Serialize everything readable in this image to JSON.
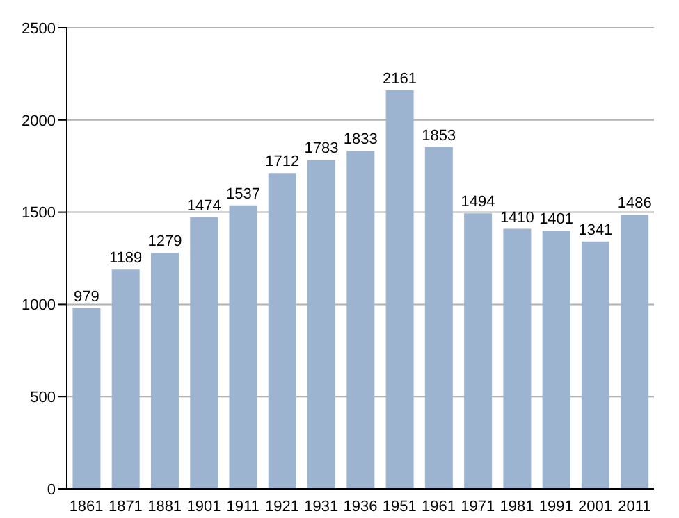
{
  "chart_data": {
    "type": "bar",
    "categories": [
      "1861",
      "1871",
      "1881",
      "1901",
      "1911",
      "1921",
      "1931",
      "1936",
      "1951",
      "1961",
      "1971",
      "1981",
      "1991",
      "2001",
      "2011"
    ],
    "values": [
      979,
      1189,
      1279,
      1474,
      1537,
      1712,
      1783,
      1833,
      2161,
      1853,
      1494,
      1410,
      1401,
      1341,
      1486
    ],
    "color": "#9cb4cf",
    "ylim": [
      0,
      2500
    ],
    "yticks": [
      0,
      500,
      1000,
      1500,
      2000,
      2500
    ],
    "grid": "y",
    "data_labels": true
  }
}
